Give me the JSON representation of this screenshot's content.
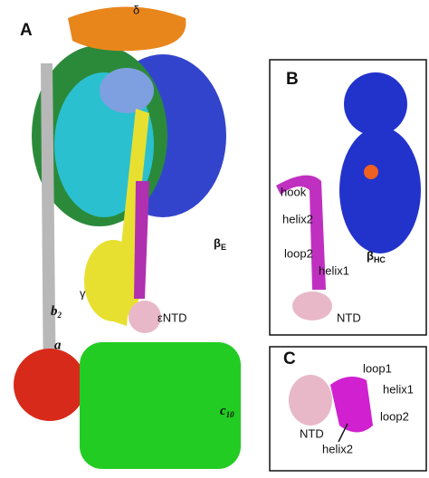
{
  "panel_a": {
    "label": "A",
    "delta": "δ",
    "beta_e": {
      "text": "β",
      "sub": "E"
    },
    "gamma": "γ",
    "b2": {
      "text": "b",
      "sub": "2"
    },
    "a": "a",
    "epsilon_ntd": "εNTD",
    "c10": {
      "text": "c",
      "sub": "10"
    }
  },
  "panel_b": {
    "label": "B",
    "hook": "hook",
    "helix2": "helix2",
    "loop2": "loop2",
    "helix1": "helix1",
    "beta_hc": {
      "text": "β",
      "sub": "HC"
    },
    "ntd": "NTD"
  },
  "panel_c": {
    "label": "C",
    "loop1": "loop1",
    "helix1": "helix1",
    "ntd": "NTD",
    "loop2": "loop2",
    "helix2": "helix2"
  }
}
